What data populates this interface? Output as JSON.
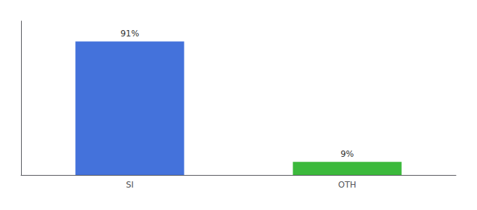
{
  "chart_data": {
    "type": "bar",
    "categories": [
      "SI",
      "OTH"
    ],
    "values": [
      91,
      9
    ],
    "value_labels": [
      "91%",
      "9%"
    ],
    "data_labels": true,
    "colors": [
      "#4472DB",
      "#3CB93C"
    ],
    "ylim": [
      0,
      105
    ],
    "tick_labels": "x",
    "grid": false
  }
}
